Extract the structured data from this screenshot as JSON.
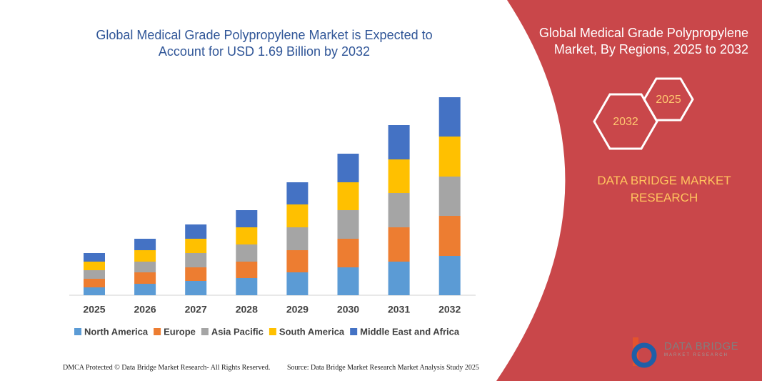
{
  "chart_data": {
    "type": "stacked_bar",
    "title": "Global Medical Grade Polypropylene Market is Expected to Account for USD 1.69 Billion by 2032",
    "categories": [
      "2025",
      "2026",
      "2027",
      "2028",
      "2029",
      "2030",
      "2031",
      "2032"
    ],
    "series": [
      {
        "name": "North America",
        "color": "#5b9bd5",
        "values": [
          11,
          16,
          20,
          24,
          32,
          39,
          47,
          55
        ]
      },
      {
        "name": "Europe",
        "color": "#ed7d31",
        "values": [
          12,
          16,
          19,
          23,
          31,
          40,
          48,
          56
        ]
      },
      {
        "name": "Asia Pacific",
        "color": "#a5a5a5",
        "values": [
          12,
          15,
          20,
          24,
          32,
          40,
          48,
          55
        ]
      },
      {
        "name": "South America",
        "color": "#ffc000",
        "values": [
          12,
          16,
          20,
          24,
          32,
          39,
          47,
          56
        ]
      },
      {
        "name": "Middle East and Africa",
        "color": "#4472c4",
        "values": [
          12,
          16,
          20,
          24,
          31,
          40,
          48,
          55
        ]
      }
    ]
  },
  "side": {
    "title": "Global Medical Grade Polypropylene Market, By Regions, 2025 to 2032",
    "hex_large": "2032",
    "hex_small": "2025",
    "brand": "DATA BRIDGE MARKET RESEARCH"
  },
  "footer": {
    "left": "DMCA Protected © Data Bridge Market Research- All Rights Reserved.",
    "right": "Source: Data Bridge Market Research Market Analysis Study 2025"
  },
  "logo": {
    "name": "DATA BRIDGE",
    "tagline": "MARKET RESEARCH"
  }
}
